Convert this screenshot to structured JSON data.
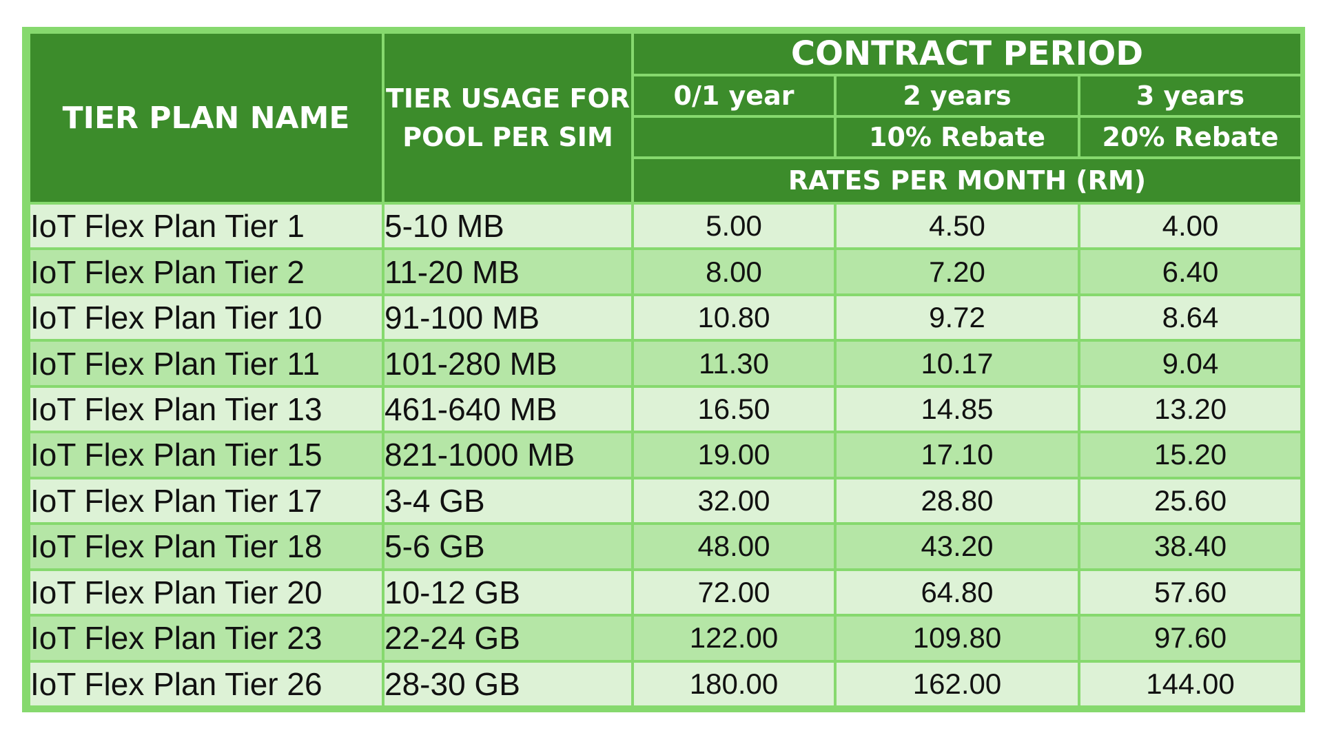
{
  "header": {
    "tier_plan_name": "TIER PLAN NAME",
    "tier_usage_line1": "TIER USAGE FOR",
    "tier_usage_line2": "POOL PER SIM",
    "contract_period": "CONTRACT PERIOD",
    "period_1": "0/1 year",
    "period_2": "2 years",
    "period_3": "3 years",
    "rebate_1": "",
    "rebate_2": "10% Rebate",
    "rebate_3": "20% Rebate",
    "rates": "RATES PER MONTH (RM)"
  },
  "rows": [
    {
      "name": "IoT Flex Plan Tier 1",
      "usage": "5-10 MB",
      "y1": "5.00",
      "y2": "4.50",
      "y3": "4.00"
    },
    {
      "name": "IoT Flex Plan Tier 2",
      "usage": "11-20 MB",
      "y1": "8.00",
      "y2": "7.20",
      "y3": "6.40"
    },
    {
      "name": "IoT Flex Plan Tier 10",
      "usage": "91-100 MB",
      "y1": "10.80",
      "y2": "9.72",
      "y3": "8.64"
    },
    {
      "name": "IoT Flex Plan Tier 11",
      "usage": "101-280 MB",
      "y1": "11.30",
      "y2": "10.17",
      "y3": "9.04"
    },
    {
      "name": "IoT Flex Plan Tier 13",
      "usage": "461-640 MB",
      "y1": "16.50",
      "y2": "14.85",
      "y3": "13.20"
    },
    {
      "name": "IoT Flex Plan Tier 15",
      "usage": "821-1000 MB",
      "y1": "19.00",
      "y2": "17.10",
      "y3": "15.20"
    },
    {
      "name": "IoT Flex Plan Tier 17",
      "usage": "3-4 GB",
      "y1": "32.00",
      "y2": "28.80",
      "y3": "25.60"
    },
    {
      "name": "IoT Flex Plan Tier 18",
      "usage": "5-6 GB",
      "y1": "48.00",
      "y2": "43.20",
      "y3": "38.40"
    },
    {
      "name": "IoT Flex Plan Tier 20",
      "usage": "10-12 GB",
      "y1": "72.00",
      "y2": "64.80",
      "y3": "57.60"
    },
    {
      "name": "IoT Flex Plan Tier 23",
      "usage": "22-24 GB",
      "y1": "122.00",
      "y2": "109.80",
      "y3": "97.60"
    },
    {
      "name": "IoT Flex Plan Tier 26",
      "usage": "28-30 GB",
      "y1": "180.00",
      "y2": "162.00",
      "y3": "144.00"
    }
  ],
  "colors": {
    "header_green": "#3c8c2b",
    "border_green": "#86d96e",
    "row_light": "#ddf2d6",
    "row_medium": "#b5e6a6"
  }
}
